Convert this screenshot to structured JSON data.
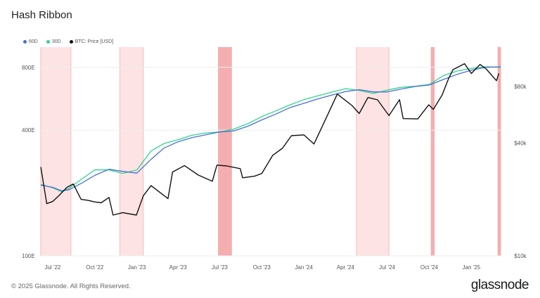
{
  "title": "Hash Ribbon",
  "footer": {
    "copyright": "© 2025 Glassnode. All Rights Reserved.",
    "brand": "glassnode"
  },
  "colors": {
    "ma60": "#4a6fd4",
    "ma30": "#2fd48e",
    "price": "#111111",
    "capitulation": "#fde3e3",
    "capitulation_strong": "#f5aeb0",
    "capitulation_edge": "#f3a3a3",
    "grid": "#eeeeee"
  },
  "chart_data": {
    "type": "line",
    "title": "Hash Ribbon",
    "legend": [
      "60D",
      "30D",
      "BTC: Price [USD]"
    ],
    "legend_placement": "top-left",
    "grid": true,
    "x_range": [
      "2022-06-05",
      "2025-03-06"
    ],
    "x_ticks": [
      {
        "date": "2022-07-01",
        "label": "Jul '22"
      },
      {
        "date": "2022-10-01",
        "label": "Oct '22"
      },
      {
        "date": "2023-01-01",
        "label": "Jan '23"
      },
      {
        "date": "2023-04-01",
        "label": "Apr '23"
      },
      {
        "date": "2023-07-01",
        "label": "Jul '23"
      },
      {
        "date": "2023-10-01",
        "label": "Oct '23"
      },
      {
        "date": "2024-01-01",
        "label": "Jan '24"
      },
      {
        "date": "2024-04-01",
        "label": "Apr '24"
      },
      {
        "date": "2024-07-01",
        "label": "Jul '24"
      },
      {
        "date": "2024-10-01",
        "label": "Oct '24"
      },
      {
        "date": "2025-01-01",
        "label": "Jan '25"
      }
    ],
    "y_left": {
      "scale": "log",
      "unit": "EH/s",
      "range": [
        100,
        1000
      ],
      "ticks": [
        {
          "value": 100,
          "label": "100E"
        },
        {
          "value": 400,
          "label": "400E"
        },
        {
          "value": 800,
          "label": "800E"
        }
      ]
    },
    "y_right": {
      "scale": "log",
      "unit": "USD",
      "range": [
        10000,
        130000
      ],
      "ticks": [
        {
          "value": 10000,
          "label": "$10k"
        },
        {
          "value": 40000,
          "label": "$40k"
        },
        {
          "value": 80000,
          "label": "$80k"
        }
      ]
    },
    "capitulation_periods": [
      {
        "start": "2022-06-05",
        "end": "2022-08-10",
        "intensity": "light"
      },
      {
        "start": "2022-11-25",
        "end": "2023-01-15",
        "intensity": "light"
      },
      {
        "start": "2023-06-28",
        "end": "2023-07-27",
        "intensity": "strong"
      },
      {
        "start": "2024-04-25",
        "end": "2024-07-05",
        "intensity": "light"
      },
      {
        "start": "2024-10-05",
        "end": "2024-10-12",
        "intensity": "strong"
      },
      {
        "start": "2025-02-28",
        "end": "2025-03-06",
        "intensity": "strong"
      }
    ],
    "series": [
      {
        "name": "60D",
        "axis": "left",
        "points": [
          [
            "2022-06-05",
            218
          ],
          [
            "2022-07-01",
            213
          ],
          [
            "2022-07-20",
            205
          ],
          [
            "2022-08-05",
            207
          ],
          [
            "2022-09-01",
            222
          ],
          [
            "2022-10-01",
            243
          ],
          [
            "2022-11-01",
            260
          ],
          [
            "2022-12-01",
            254
          ],
          [
            "2023-01-01",
            249
          ],
          [
            "2023-02-01",
            290
          ],
          [
            "2023-03-01",
            328
          ],
          [
            "2023-04-01",
            352
          ],
          [
            "2023-05-01",
            368
          ],
          [
            "2023-06-01",
            380
          ],
          [
            "2023-07-01",
            392
          ],
          [
            "2023-08-01",
            397
          ],
          [
            "2023-09-01",
            418
          ],
          [
            "2023-10-01",
            448
          ],
          [
            "2023-11-01",
            478
          ],
          [
            "2023-12-01",
            512
          ],
          [
            "2024-01-01",
            538
          ],
          [
            "2024-02-01",
            565
          ],
          [
            "2024-03-01",
            588
          ],
          [
            "2024-04-01",
            612
          ],
          [
            "2024-05-01",
            625
          ],
          [
            "2024-06-01",
            610
          ],
          [
            "2024-07-01",
            610
          ],
          [
            "2024-08-01",
            630
          ],
          [
            "2024-09-01",
            648
          ],
          [
            "2024-10-01",
            658
          ],
          [
            "2024-11-01",
            700
          ],
          [
            "2024-12-01",
            740
          ],
          [
            "2025-01-01",
            775
          ],
          [
            "2025-02-01",
            800
          ],
          [
            "2025-03-06",
            805
          ]
        ]
      },
      {
        "name": "30D",
        "axis": "left",
        "points": [
          [
            "2022-06-05",
            220
          ],
          [
            "2022-07-01",
            212
          ],
          [
            "2022-07-20",
            203
          ],
          [
            "2022-08-05",
            210
          ],
          [
            "2022-09-01",
            232
          ],
          [
            "2022-10-01",
            258
          ],
          [
            "2022-11-01",
            258
          ],
          [
            "2022-12-01",
            248
          ],
          [
            "2023-01-01",
            258
          ],
          [
            "2023-02-01",
            318
          ],
          [
            "2023-03-01",
            345
          ],
          [
            "2023-04-01",
            360
          ],
          [
            "2023-05-01",
            378
          ],
          [
            "2023-06-01",
            388
          ],
          [
            "2023-07-01",
            392
          ],
          [
            "2023-08-01",
            405
          ],
          [
            "2023-09-01",
            430
          ],
          [
            "2023-10-01",
            465
          ],
          [
            "2023-11-01",
            495
          ],
          [
            "2023-12-01",
            528
          ],
          [
            "2024-01-01",
            560
          ],
          [
            "2024-02-01",
            585
          ],
          [
            "2024-03-01",
            608
          ],
          [
            "2024-04-01",
            632
          ],
          [
            "2024-05-01",
            620
          ],
          [
            "2024-06-01",
            600
          ],
          [
            "2024-07-01",
            622
          ],
          [
            "2024-08-01",
            642
          ],
          [
            "2024-09-01",
            650
          ],
          [
            "2024-10-01",
            662
          ],
          [
            "2024-11-01",
            730
          ],
          [
            "2024-12-01",
            768
          ],
          [
            "2025-01-01",
            790
          ],
          [
            "2025-02-01",
            805
          ],
          [
            "2025-03-06",
            800
          ]
        ]
      },
      {
        "name": "BTC: Price [USD]",
        "axis": "right",
        "points": [
          [
            "2022-06-05",
            29800
          ],
          [
            "2022-06-18",
            19000
          ],
          [
            "2022-07-01",
            19500
          ],
          [
            "2022-07-15",
            21000
          ],
          [
            "2022-08-01",
            23200
          ],
          [
            "2022-08-15",
            24200
          ],
          [
            "2022-09-01",
            20000
          ],
          [
            "2022-09-15",
            19800
          ],
          [
            "2022-10-01",
            19400
          ],
          [
            "2022-10-15",
            19200
          ],
          [
            "2022-11-01",
            20500
          ],
          [
            "2022-11-10",
            16500
          ],
          [
            "2022-12-01",
            17000
          ],
          [
            "2022-12-31",
            16500
          ],
          [
            "2023-01-15",
            20900
          ],
          [
            "2023-02-01",
            23700
          ],
          [
            "2023-03-10",
            20200
          ],
          [
            "2023-03-20",
            28000
          ],
          [
            "2023-04-15",
            30300
          ],
          [
            "2023-05-15",
            27000
          ],
          [
            "2023-06-15",
            25000
          ],
          [
            "2023-06-25",
            30500
          ],
          [
            "2023-07-15",
            30200
          ],
          [
            "2023-08-15",
            29200
          ],
          [
            "2023-08-20",
            26100
          ],
          [
            "2023-09-15",
            26600
          ],
          [
            "2023-10-01",
            27500
          ],
          [
            "2023-10-25",
            34400
          ],
          [
            "2023-11-15",
            37500
          ],
          [
            "2023-12-05",
            43800
          ],
          [
            "2024-01-01",
            44200
          ],
          [
            "2024-01-23",
            39500
          ],
          [
            "2024-02-15",
            52000
          ],
          [
            "2024-03-14",
            73000
          ],
          [
            "2024-04-15",
            63500
          ],
          [
            "2024-05-01",
            57500
          ],
          [
            "2024-05-20",
            70000
          ],
          [
            "2024-06-10",
            68000
          ],
          [
            "2024-07-05",
            56000
          ],
          [
            "2024-07-28",
            68200
          ],
          [
            "2024-08-05",
            54000
          ],
          [
            "2024-09-06",
            53800
          ],
          [
            "2024-09-30",
            64000
          ],
          [
            "2024-10-10",
            60500
          ],
          [
            "2024-10-29",
            72000
          ],
          [
            "2024-11-12",
            88000
          ],
          [
            "2024-11-22",
            98500
          ],
          [
            "2024-12-17",
            106000
          ],
          [
            "2025-01-01",
            94000
          ],
          [
            "2025-01-20",
            105000
          ],
          [
            "2025-02-03",
            99000
          ],
          [
            "2025-02-25",
            86000
          ],
          [
            "2025-03-02",
            94000
          ]
        ]
      }
    ]
  }
}
